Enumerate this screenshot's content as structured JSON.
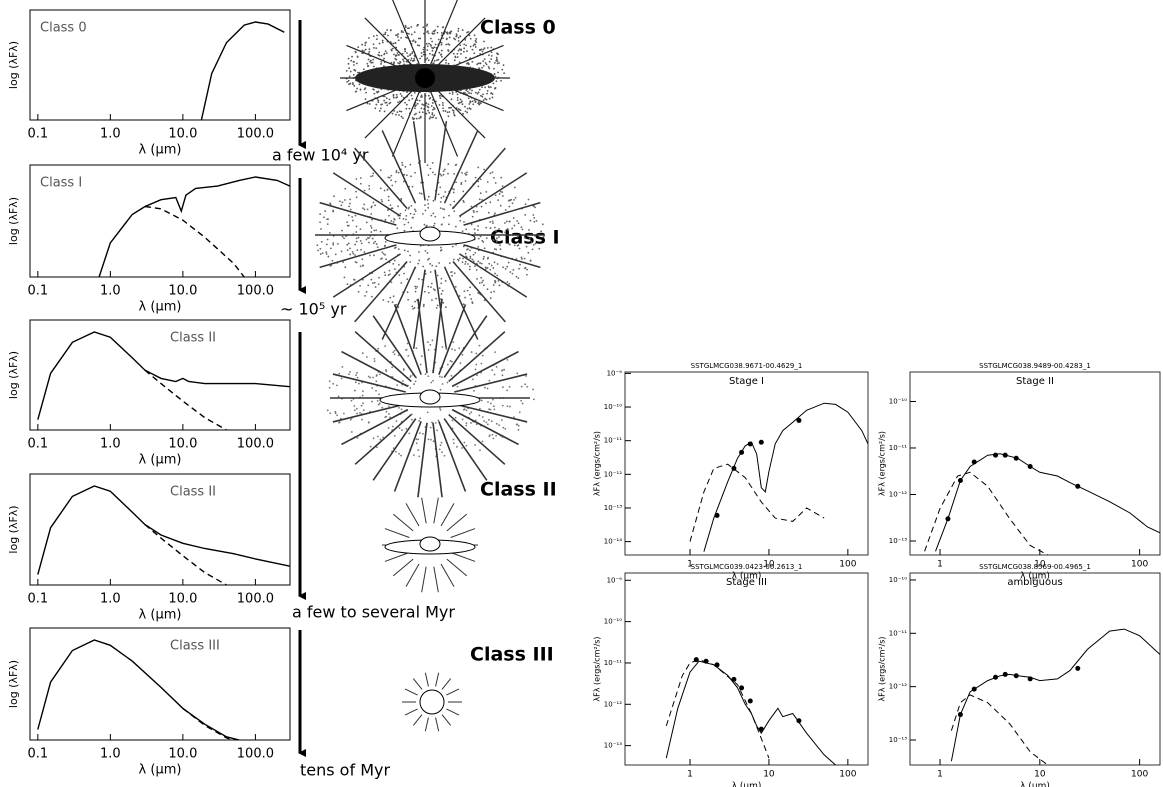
{
  "chart_data": [
    {
      "type": "line",
      "label": "Class 0",
      "xlabel": "λ (μm)",
      "ylabel": "log (λFλ)",
      "xscale": "log",
      "xlim": [
        0.078,
        300
      ],
      "xticks": [
        0.1,
        {
          "value": 1,
          "label": "1.0"
        },
        {
          "value": 10,
          "label": "10.0"
        },
        {
          "value": 100,
          "label": "100.0"
        }
      ],
      "series": [
        {
          "color": "#000000",
          "style": "solid",
          "x": [
            18,
            25,
            40,
            70,
            100,
            150,
            250
          ],
          "values": [
            0,
            0.45,
            0.75,
            0.92,
            0.95,
            0.93,
            0.85
          ]
        }
      ]
    },
    {
      "type": "line",
      "label": "Class I",
      "xlabel": "λ (μm)",
      "ylabel": "log (λFλ)",
      "xscale": "log",
      "xlim": [
        0.078,
        300
      ],
      "xticks": [
        0.1,
        {
          "value": 1,
          "label": "1.0"
        },
        {
          "value": 10,
          "label": "10.0"
        },
        {
          "value": 100,
          "label": "100.0"
        }
      ],
      "series": [
        {
          "color": "#000000",
          "style": "solid",
          "x": [
            0.7,
            1,
            2,
            3,
            5,
            8,
            9.5,
            11,
            15,
            30,
            60,
            100,
            200,
            300
          ],
          "values": [
            0,
            0.3,
            0.55,
            0.62,
            0.68,
            0.7,
            0.58,
            0.72,
            0.78,
            0.8,
            0.85,
            0.88,
            0.85,
            0.8
          ]
        },
        {
          "color": "#000000",
          "style": "dashed",
          "x": [
            3,
            5,
            10,
            20,
            50,
            70
          ],
          "values": [
            0.62,
            0.6,
            0.5,
            0.35,
            0.12,
            0
          ]
        }
      ]
    },
    {
      "type": "line",
      "label": "Class II",
      "xlabel": "λ (μm)",
      "ylabel": "log (λFλ)",
      "xscale": "log",
      "xlim": [
        0.078,
        300
      ],
      "xticks": [
        0.1,
        {
          "value": 1,
          "label": "1.0"
        },
        {
          "value": 10,
          "label": "10.0"
        },
        {
          "value": 100,
          "label": "100.0"
        }
      ],
      "series": [
        {
          "color": "#000000",
          "style": "solid",
          "x": [
            0.1,
            0.15,
            0.3,
            0.6,
            1,
            2,
            3,
            5,
            8,
            10,
            12,
            20,
            50,
            100,
            300
          ],
          "values": [
            0.1,
            0.55,
            0.85,
            0.95,
            0.9,
            0.7,
            0.58,
            0.5,
            0.47,
            0.5,
            0.47,
            0.45,
            0.45,
            0.45,
            0.42
          ]
        },
        {
          "color": "#000000",
          "style": "dashed",
          "x": [
            3,
            5,
            10,
            20,
            40
          ],
          "values": [
            0.58,
            0.45,
            0.28,
            0.12,
            0
          ]
        }
      ]
    },
    {
      "type": "line",
      "label": "Class II",
      "xlabel": "λ (μm)",
      "ylabel": "log (λFλ)",
      "xscale": "log",
      "xlim": [
        0.078,
        300
      ],
      "xticks": [
        0.1,
        {
          "value": 1,
          "label": "1.0"
        },
        {
          "value": 10,
          "label": "10.0"
        },
        {
          "value": 100,
          "label": "100.0"
        }
      ],
      "series": [
        {
          "color": "#000000",
          "style": "solid",
          "x": [
            0.1,
            0.15,
            0.3,
            0.6,
            1,
            2,
            3,
            5,
            10,
            20,
            50,
            100,
            300
          ],
          "values": [
            0.1,
            0.55,
            0.85,
            0.95,
            0.9,
            0.7,
            0.58,
            0.48,
            0.4,
            0.35,
            0.3,
            0.25,
            0.18
          ]
        },
        {
          "color": "#000000",
          "style": "dashed",
          "x": [
            3,
            5,
            10,
            20,
            40
          ],
          "values": [
            0.58,
            0.45,
            0.28,
            0.12,
            0
          ]
        }
      ]
    },
    {
      "type": "line",
      "label": "Class III",
      "xlabel": "λ (μm)",
      "ylabel": "log (λFλ)",
      "xscale": "log",
      "xlim": [
        0.078,
        300
      ],
      "xticks": [
        0.1,
        {
          "value": 1,
          "label": "1.0"
        },
        {
          "value": 10,
          "label": "10.0"
        },
        {
          "value": 100,
          "label": "100.0"
        }
      ],
      "series": [
        {
          "color": "#000000",
          "style": "solid",
          "x": [
            0.1,
            0.15,
            0.3,
            0.6,
            1,
            2,
            5,
            10,
            20,
            40,
            60
          ],
          "values": [
            0.1,
            0.55,
            0.85,
            0.95,
            0.9,
            0.75,
            0.5,
            0.3,
            0.15,
            0.03,
            0
          ]
        },
        {
          "color": "#000000",
          "style": "dashed",
          "x": [
            10,
            20,
            40,
            50
          ],
          "values": [
            0.3,
            0.14,
            0.02,
            0
          ]
        }
      ]
    },
    {
      "type": "line",
      "title": "SSTGLMCG038.9671-00.4629_1",
      "subtitle": "Stage I",
      "xlabel": "λ (μm)",
      "ylabel": "λFλ (ergs/cm²/s)",
      "xscale": "log",
      "yscale": "log",
      "xlim": [
        0.15,
        180
      ],
      "xticks": [
        1,
        10,
        100
      ],
      "ylim": [
        4e-15,
        1.1e-09
      ],
      "yticks": [
        {
          "value": 1e-09,
          "label": "10⁻⁹"
        },
        {
          "value": 1e-10,
          "label": "10⁻¹⁰"
        },
        {
          "value": 1e-11,
          "label": "10⁻¹¹"
        },
        {
          "value": 1e-12,
          "label": "10⁻¹²"
        },
        {
          "value": 1e-13,
          "label": "10⁻¹³"
        },
        {
          "value": 1e-14,
          "label": "10⁻¹⁴"
        }
      ],
      "series": [
        {
          "color": "#000000",
          "style": "solid",
          "x": [
            1.5,
            2,
            3,
            4,
            5,
            6,
            7,
            8,
            9,
            10,
            12,
            15,
            20,
            30,
            50,
            70,
            100,
            150,
            180
          ],
          "values": [
            5e-15,
            5e-14,
            6e-13,
            3e-12,
            7e-12,
            9e-12,
            4e-12,
            4e-13,
            3e-13,
            1.2e-12,
            8e-12,
            2e-11,
            3.5e-11,
            8e-11,
            1.3e-10,
            1.2e-10,
            7e-11,
            2e-11,
            8e-12
          ]
        },
        {
          "color": "#000000",
          "style": "dashed",
          "x": [
            1,
            1.5,
            2,
            3,
            5,
            8,
            12,
            20,
            30,
            50
          ],
          "values": [
            1e-14,
            3e-13,
            1.5e-12,
            2e-12,
            8e-13,
            1.5e-13,
            5e-14,
            4e-14,
            1e-13,
            5e-14
          ]
        },
        {
          "color": "#000000",
          "style": "points",
          "x": [
            2.2,
            3.6,
            4.5,
            5.8,
            8,
            24
          ],
          "values": [
            6e-14,
            1.5e-12,
            4.5e-12,
            8e-12,
            9e-12,
            4e-11
          ]
        }
      ]
    },
    {
      "type": "line",
      "title": "SSTGLMCG038.9489-00.4283_1",
      "subtitle": "Stage II",
      "xlabel": "λ (μm)",
      "ylabel": "λFλ (ergs/cm²/s)",
      "xscale": "log",
      "yscale": "log",
      "xlim": [
        0.5,
        160
      ],
      "xticks": [
        1,
        10,
        100
      ],
      "ylim": [
        5e-14,
        4.3e-10
      ],
      "yticks": [
        {
          "value": 1e-10,
          "label": "10⁻¹⁰"
        },
        {
          "value": 1e-11,
          "label": "10⁻¹¹"
        },
        {
          "value": 1e-12,
          "label": "10⁻¹²"
        },
        {
          "value": 1e-13,
          "label": "10⁻¹³"
        }
      ],
      "series": [
        {
          "color": "#000000",
          "style": "solid",
          "x": [
            0.9,
            1.2,
            1.6,
            2,
            3,
            4,
            6,
            8,
            10,
            15,
            20,
            30,
            50,
            80,
            120,
            160
          ],
          "values": [
            6e-14,
            3e-13,
            2e-12,
            4e-12,
            7e-12,
            7.5e-12,
            6e-12,
            4e-12,
            3e-12,
            2.5e-12,
            1.8e-12,
            1.2e-12,
            7e-13,
            4e-13,
            2e-13,
            1.5e-13
          ]
        },
        {
          "color": "#000000",
          "style": "dashed",
          "x": [
            0.7,
            1,
            1.5,
            2,
            3,
            5,
            8,
            12
          ],
          "values": [
            6e-14,
            5e-13,
            2.5e-12,
            3e-12,
            1.5e-12,
            3e-13,
            8e-14,
            5e-14
          ]
        },
        {
          "color": "#000000",
          "style": "points",
          "x": [
            1.2,
            1.6,
            2.2,
            3.6,
            4.5,
            5.8,
            8,
            24
          ],
          "values": [
            3e-13,
            2e-12,
            5e-12,
            7e-12,
            7e-12,
            6e-12,
            4e-12,
            1.5e-12
          ]
        }
      ]
    },
    {
      "type": "line",
      "title": "SSTGLMCG039.0423-00.2613_1",
      "subtitle": "Stage III",
      "xlabel": "λ (μm)",
      "ylabel": "λFλ (ergs/cm²/s)",
      "xscale": "log",
      "yscale": "log",
      "xlim": [
        0.15,
        180
      ],
      "xticks": [
        1,
        10,
        100
      ],
      "ylim": [
        3.4e-14,
        1.5e-09
      ],
      "yticks": [
        {
          "value": 1e-09,
          "label": "10⁻⁹"
        },
        {
          "value": 1e-10,
          "label": "10⁻¹⁰"
        },
        {
          "value": 1e-11,
          "label": "10⁻¹¹"
        },
        {
          "value": 1e-12,
          "label": "10⁻¹²"
        },
        {
          "value": 1e-13,
          "label": "10⁻¹³"
        }
      ],
      "series": [
        {
          "color": "#000000",
          "style": "solid",
          "x": [
            0.5,
            0.7,
            1,
            1.3,
            2,
            3,
            4,
            5,
            6,
            7,
            8,
            10,
            13,
            15,
            20,
            30,
            50,
            70
          ],
          "values": [
            5e-14,
            8e-13,
            6e-12,
            1.1e-11,
            9e-12,
            5e-12,
            2.5e-12,
            1e-12,
            6e-13,
            3e-13,
            2e-13,
            4e-13,
            8e-13,
            5e-13,
            6e-13,
            2e-13,
            6e-14,
            3.4e-14
          ]
        },
        {
          "color": "#000000",
          "style": "dashed",
          "x": [
            0.5,
            0.8,
            1,
            1.3,
            2,
            4,
            6,
            8,
            10
          ],
          "values": [
            3e-13,
            5e-12,
            1e-11,
            1.2e-11,
            9e-12,
            3e-12,
            6e-13,
            1.5e-13,
            5e-14
          ]
        },
        {
          "color": "#000000",
          "style": "points",
          "x": [
            1.2,
            1.6,
            2.2,
            3.6,
            4.5,
            5.8,
            8,
            24
          ],
          "values": [
            1.2e-11,
            1.1e-11,
            9e-12,
            4e-12,
            2.5e-12,
            1.2e-12,
            2.5e-13,
            4e-13
          ]
        }
      ]
    },
    {
      "type": "line",
      "title": "SSTGLMCG038.8569-00.4965_1",
      "subtitle": "ambiguous",
      "xlabel": "λ (μm)",
      "ylabel": "λFλ (ergs/cm²/s)",
      "xscale": "log",
      "yscale": "log",
      "xlim": [
        0.5,
        160
      ],
      "xticks": [
        1,
        10,
        100
      ],
      "ylim": [
        3.4e-14,
        1.35e-10
      ],
      "yticks": [
        {
          "value": 1e-10,
          "label": "10⁻¹⁰"
        },
        {
          "value": 1e-11,
          "label": "10⁻¹¹"
        },
        {
          "value": 1e-12,
          "label": "10⁻¹²"
        },
        {
          "value": 1e-13,
          "label": "10⁻¹³"
        }
      ],
      "series": [
        {
          "color": "#000000",
          "style": "solid",
          "x": [
            1.3,
            1.6,
            2,
            3,
            4,
            5,
            6,
            8,
            10,
            15,
            20,
            30,
            50,
            70,
            100,
            160
          ],
          "values": [
            4e-14,
            3e-13,
            8e-13,
            1.3e-12,
            1.6e-12,
            1.7e-12,
            1.6e-12,
            1.5e-12,
            1.3e-12,
            1.4e-12,
            2e-12,
            5e-12,
            1.1e-11,
            1.2e-11,
            9e-12,
            4e-12
          ]
        },
        {
          "color": "#000000",
          "style": "dashed",
          "x": [
            1.3,
            1.6,
            2,
            3,
            5,
            8,
            12
          ],
          "values": [
            1.5e-13,
            5e-13,
            7e-13,
            5e-13,
            2e-13,
            6e-14,
            3.4e-14
          ]
        },
        {
          "color": "#000000",
          "style": "points",
          "x": [
            1.6,
            2.2,
            3.6,
            4.5,
            5.8,
            8,
            24
          ],
          "values": [
            3e-13,
            9e-13,
            1.5e-12,
            1.7e-12,
            1.6e-12,
            1.4e-12,
            2.2e-12
          ]
        }
      ]
    }
  ],
  "annotations": {
    "class_labels": [
      "Class 0",
      "Class I",
      "Class II",
      "Class III"
    ],
    "timeline": [
      "a few 10⁴ yr",
      "~ 10⁵ yr",
      "a few to several Myr",
      "tens of Myr"
    ]
  }
}
